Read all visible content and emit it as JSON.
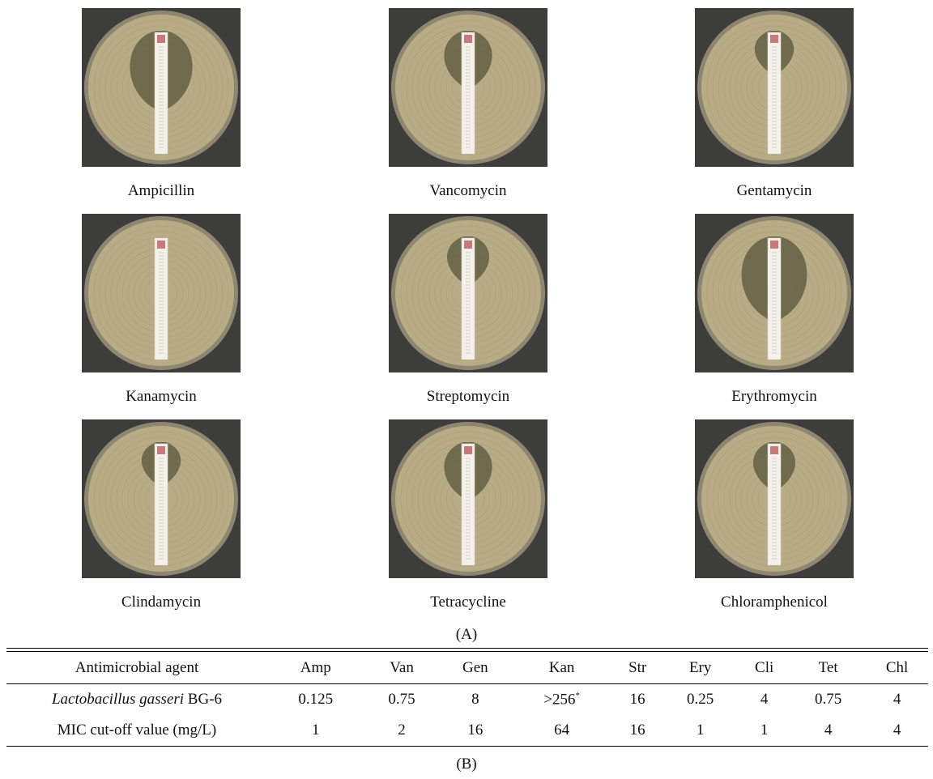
{
  "panel_a": {
    "label": "(A)",
    "plates": [
      {
        "name": "Ampicillin",
        "zone": 0.8
      },
      {
        "name": "Vancomycin",
        "zone": 0.55
      },
      {
        "name": "Gentamycin",
        "zone": 0.4
      },
      {
        "name": "Kanamycin",
        "zone": 0.05
      },
      {
        "name": "Streptomycin",
        "zone": 0.45
      },
      {
        "name": "Erythromycin",
        "zone": 0.85
      },
      {
        "name": "Clindamycin",
        "zone": 0.4
      },
      {
        "name": "Tetracycline",
        "zone": 0.55
      },
      {
        "name": "Chloramphenicol",
        "zone": 0.45
      }
    ]
  },
  "panel_b": {
    "label": "(B)",
    "header": [
      "Antimicrobial agent",
      "Amp",
      "Van",
      "Gen",
      "Kan",
      "Str",
      "Ery",
      "Cli",
      "Tet",
      "Chl"
    ],
    "strain_genus": "Lactobacillus gasseri",
    "strain_id": "BG-6",
    "strain_values": [
      "0.125",
      "0.75",
      "8",
      ">256",
      "16",
      "0.25",
      "4",
      "0.75",
      "4"
    ],
    "kan_footnote_mark": "*",
    "cutoff_label": "MIC cut-off value (mg/L)",
    "cutoff_values": [
      "1",
      "2",
      "16",
      "64",
      "16",
      "1",
      "1",
      "4",
      "4"
    ]
  },
  "colors": {
    "agar": "#b8ac86",
    "zone": "#5e5a40",
    "strip": "#f4f1ea",
    "frame": "#3d3d3b"
  }
}
